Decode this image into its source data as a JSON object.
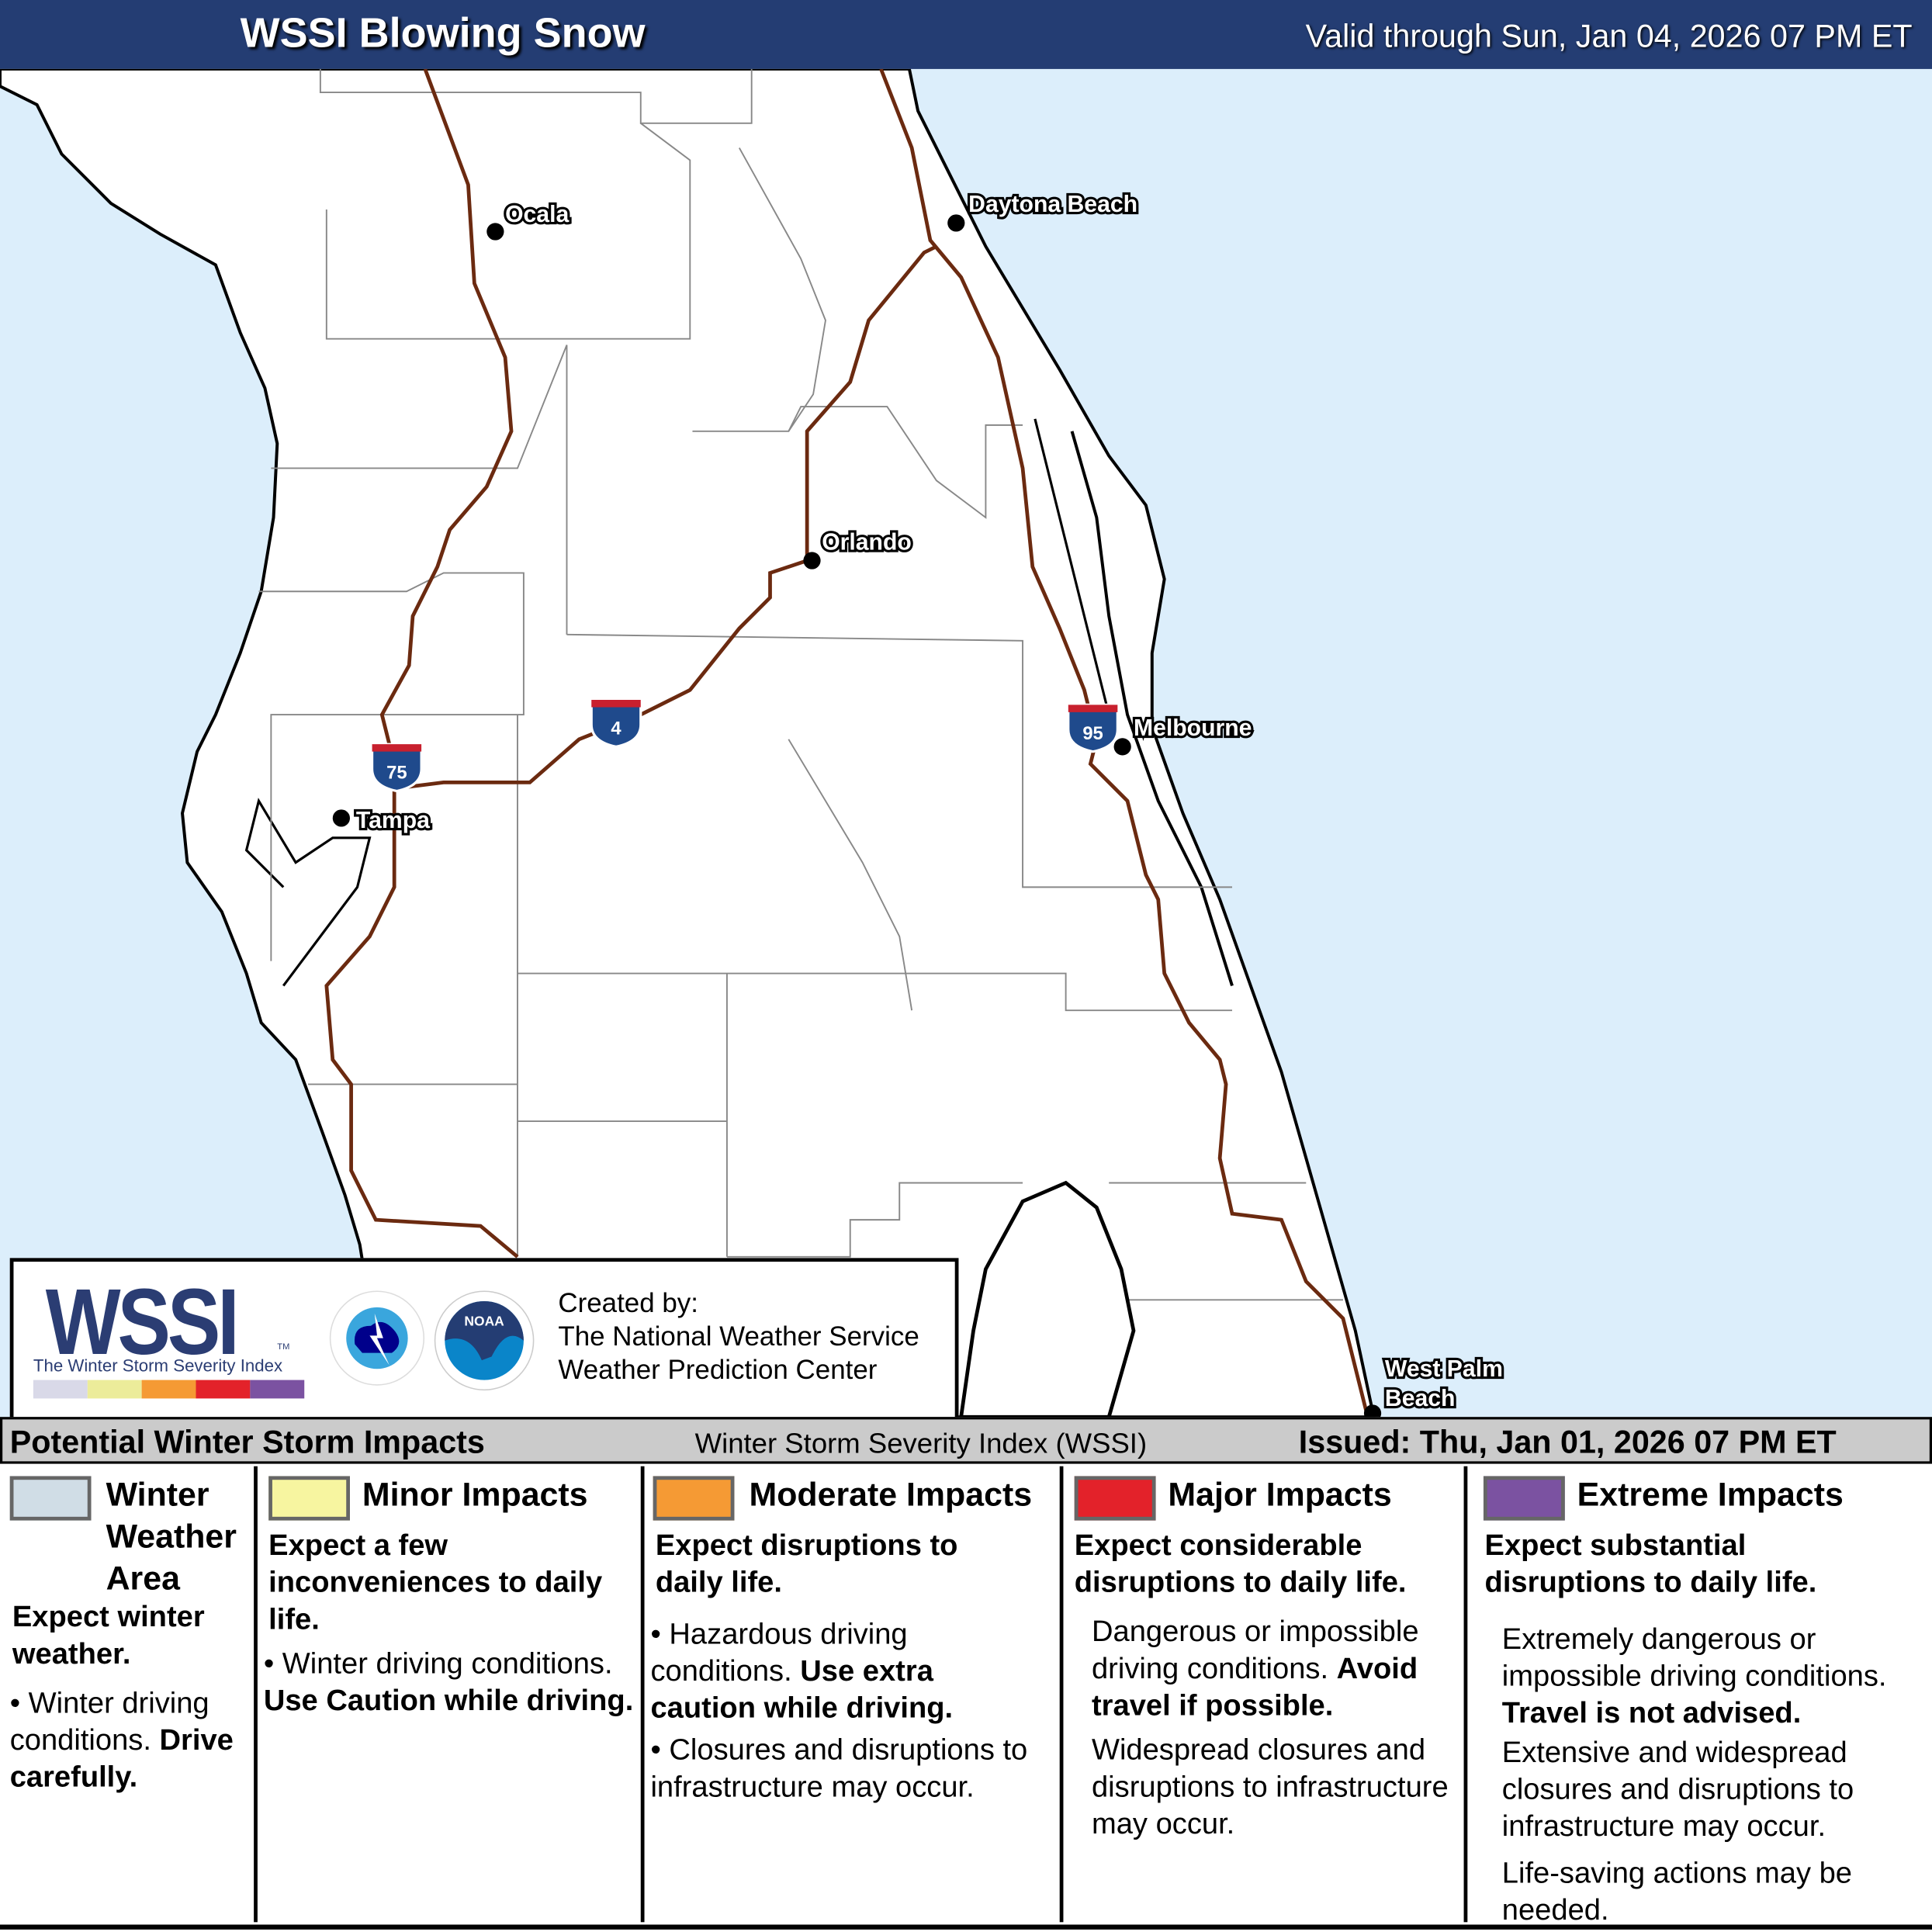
{
  "header": {
    "title": "WSSI Blowing Snow",
    "valid": "Valid through Sun, Jan 04, 2026 07 PM ET"
  },
  "map": {
    "colors": {
      "ocean": "#dceefb",
      "land": "#ffffff",
      "highway": "#6b2a10"
    },
    "cities": [
      {
        "name": "Ocala"
      },
      {
        "name": "Daytona Beach"
      },
      {
        "name": "Orlando"
      },
      {
        "name": "Melbourne"
      },
      {
        "name": "Tampa"
      },
      {
        "name": "West Palm",
        "name2": "Beach"
      }
    ],
    "highways": [
      {
        "number": "75"
      },
      {
        "number": "4"
      },
      {
        "number": "95"
      }
    ]
  },
  "logo": {
    "wssi": "WSSI",
    "tm": "TM",
    "subtitle": "The Winter Storm Severity Index",
    "scale_colors": [
      "#d9d9e8",
      "#ecec9a",
      "#f59a34",
      "#e3222a",
      "#7b52a1"
    ],
    "nws_text": "NATIONAL WEATHER SERVICE",
    "noaa_text": "NOAA",
    "created_by": "Created by:",
    "org1": "The National Weather Service",
    "org2": "Weather Prediction Center"
  },
  "status": {
    "left": "Potential Winter Storm Impacts",
    "mid": "Winter Storm Severity Index (WSSI)",
    "right": "Issued: Thu, Jan 01, 2026 07 PM ET"
  },
  "legend": [
    {
      "color": "#d0dde6",
      "title": "Winter Weather Area",
      "lead": "Expect winter weather.",
      "b1": "Winter driving conditions.",
      "b1bold": "Drive carefully."
    },
    {
      "color": "#f7f5a0",
      "title": "Minor Impacts",
      "lead": "Expect a few inconveniences to daily life.",
      "b1": "Winter driving conditions.",
      "b1bold": "Use Caution while driving."
    },
    {
      "color": "#f59a34",
      "title": "Moderate Impacts",
      "lead": "Expect disruptions to daily life.",
      "b1": "Hazardous driving conditions.",
      "b1bold": "Use extra caution while driving.",
      "b2": "Closures and disruptions to infrastructure may occur."
    },
    {
      "color": "#e3222a",
      "title": "Major Impacts",
      "lead": "Expect considerable disruptions to daily life.",
      "p1": "Dangerous or impossible driving conditions.",
      "p1bold": "Avoid travel if possible.",
      "p2": "Widespread closures and disruptions to infrastructure may occur."
    },
    {
      "color": "#7b52a1",
      "title": "Extreme Impacts",
      "lead": "Expect substantial disruptions to daily life.",
      "p1": "Extremely dangerous or impossible driving conditions.",
      "p1bold": "Travel is not advised.",
      "p2": "Extensive and widespread closures and disruptions to infrastructure may occur.",
      "p3": "Life-saving actions may be needed."
    }
  ]
}
